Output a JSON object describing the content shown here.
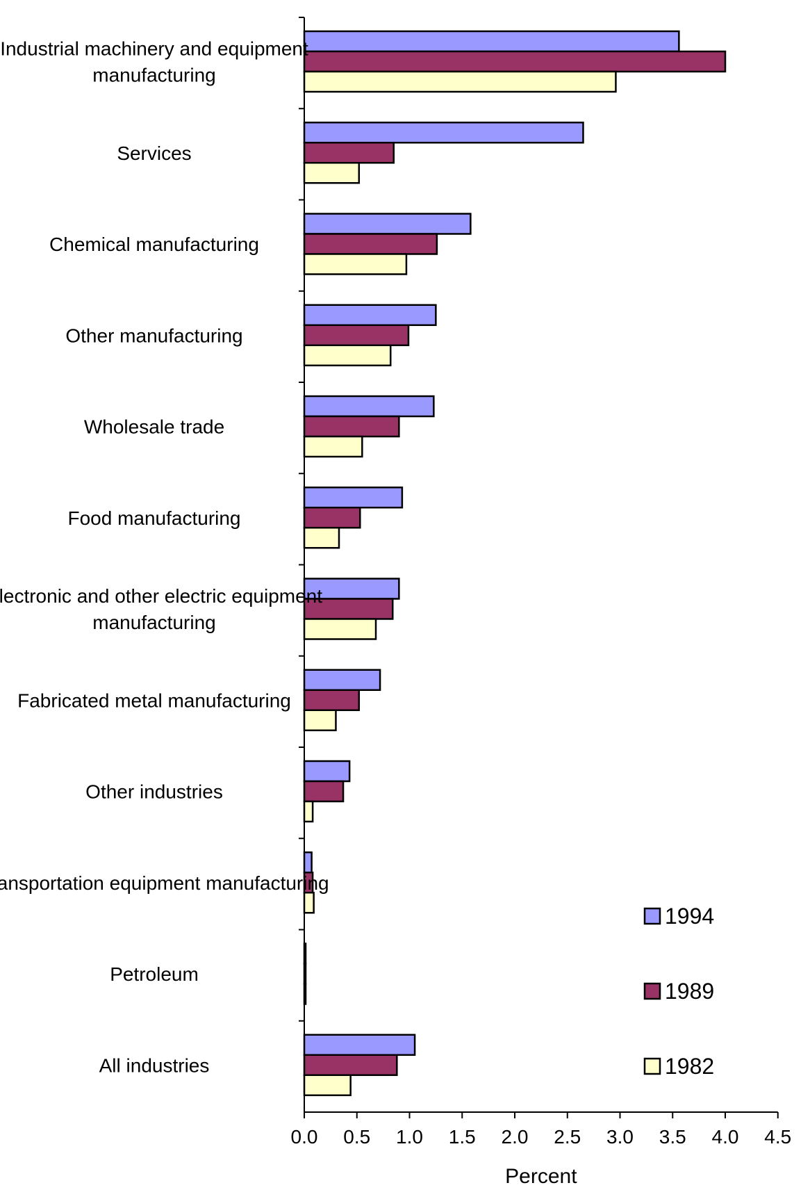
{
  "chart_data": {
    "type": "bar",
    "orientation": "horizontal",
    "categories": [
      [
        "Industrial machinery and equipment",
        "manufacturing"
      ],
      [
        "Services"
      ],
      [
        "Chemical manufacturing"
      ],
      [
        "Other manufacturing"
      ],
      [
        "Wholesale trade"
      ],
      [
        "Food manufacturing"
      ],
      [
        "Electronic and other electric equipment",
        "manufacturing"
      ],
      [
        "Fabricated metal manufacturing"
      ],
      [
        "Other industries"
      ],
      [
        "Transportation equipment manufacturing"
      ],
      [
        "Petroleum"
      ],
      [
        "All industries"
      ]
    ],
    "series": [
      {
        "name": "1994",
        "color": "#9999ff",
        "values": [
          3.56,
          2.65,
          1.58,
          1.25,
          1.23,
          0.93,
          0.9,
          0.72,
          0.43,
          0.07,
          0.0,
          1.05
        ]
      },
      {
        "name": "1989",
        "color": "#993366",
        "values": [
          4.0,
          0.85,
          1.26,
          0.99,
          0.9,
          0.53,
          0.84,
          0.52,
          0.37,
          0.08,
          0.0,
          0.88
        ]
      },
      {
        "name": "1982",
        "color": "#ffffcc",
        "values": [
          2.96,
          0.52,
          0.97,
          0.82,
          0.55,
          0.33,
          0.68,
          0.3,
          0.08,
          0.09,
          0.0,
          0.44
        ]
      }
    ],
    "xlabel": "Percent",
    "xlim": [
      0,
      4.5
    ],
    "xticks": [
      "0.0",
      "0.5",
      "1.0",
      "1.5",
      "2.0",
      "2.5",
      "3.0",
      "3.5",
      "4.0",
      "4.5"
    ],
    "grid": false,
    "legend_position": "bottom-right"
  }
}
